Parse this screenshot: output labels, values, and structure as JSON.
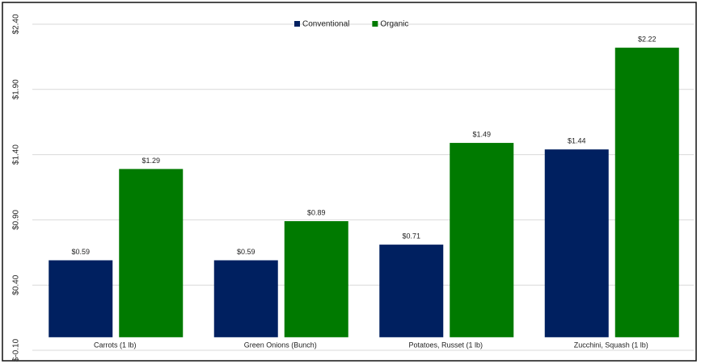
{
  "chart_data": {
    "type": "bar",
    "categories": [
      "Carrots (1 lb)",
      "Green Onions (Bunch)",
      "Potatoes, Russet (1 lb)",
      "Zucchini, Squash (1 lb)"
    ],
    "series": [
      {
        "name": "Conventional",
        "color": "#002060",
        "values": [
          0.59,
          0.59,
          0.71,
          1.44
        ],
        "value_labels": [
          "$0.59",
          "$0.59",
          "$0.71",
          "$1.44"
        ]
      },
      {
        "name": "Organic",
        "color": "#007a00",
        "values": [
          1.29,
          0.89,
          1.49,
          2.22
        ],
        "value_labels": [
          "$1.29",
          "$0.89",
          "$1.49",
          "$2.22"
        ]
      }
    ],
    "ylim": [
      -0.1,
      2.4
    ],
    "yticks": [
      {
        "value": -0.1,
        "label": "$-0.10"
      },
      {
        "value": 0.4,
        "label": "$0.40"
      },
      {
        "value": 0.9,
        "label": "$0.90"
      },
      {
        "value": 1.4,
        "label": "$1.40"
      },
      {
        "value": 1.9,
        "label": "$1.90"
      },
      {
        "value": 2.4,
        "label": "$2.40"
      }
    ],
    "grid": true,
    "legend": "top"
  }
}
